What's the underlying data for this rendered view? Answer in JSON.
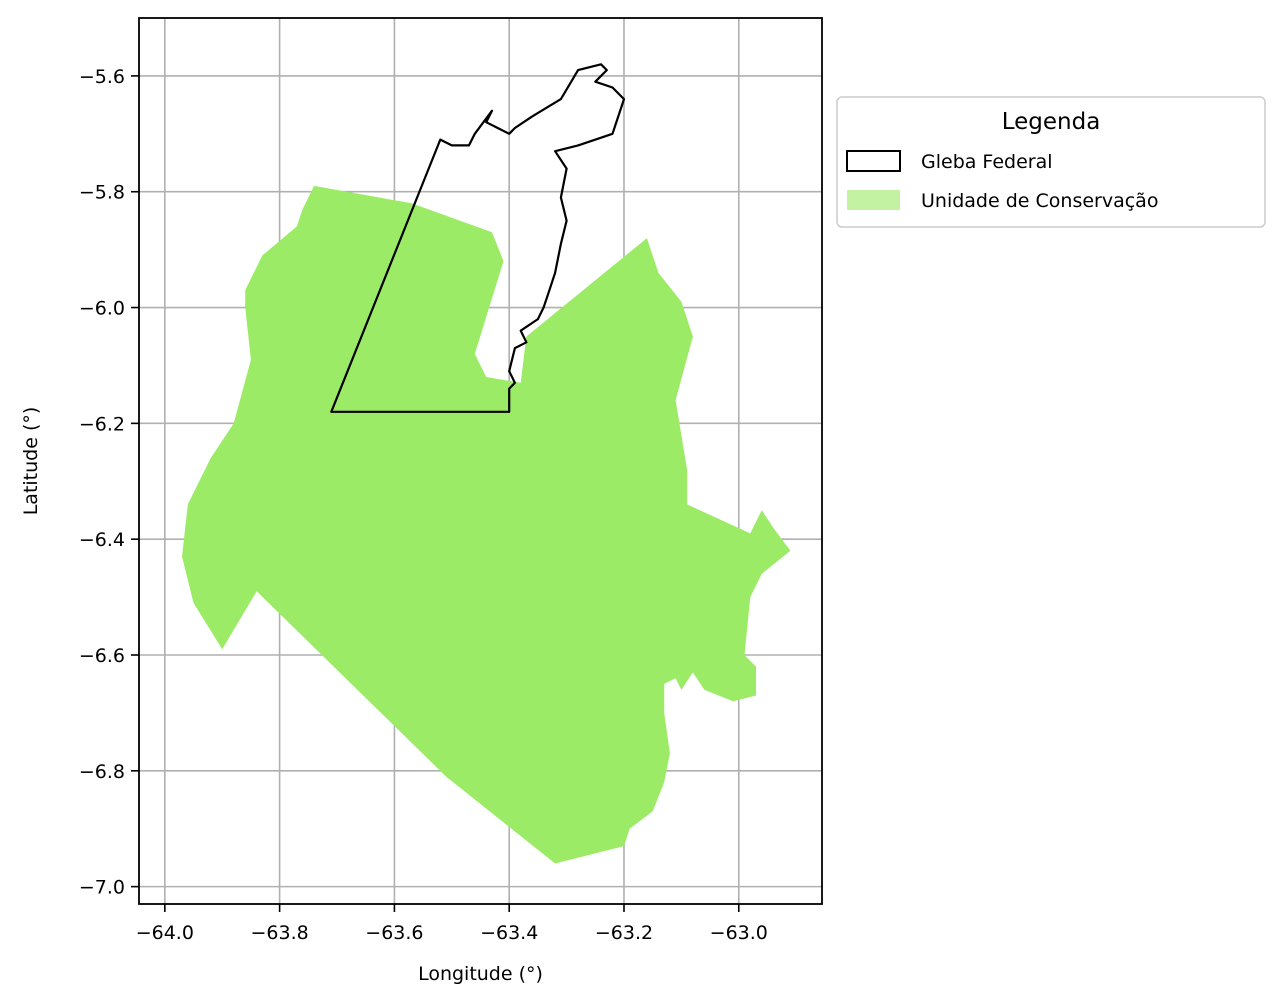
{
  "chart_data": {
    "type": "map",
    "xlabel": "Longitude (°)",
    "ylabel": "Latitude (°)",
    "xlim": [
      -64.045,
      -62.855
    ],
    "ylim": [
      -7.03,
      -5.5
    ],
    "xticks": [
      -64.0,
      -63.8,
      -63.6,
      -63.4,
      -63.2,
      -63.0
    ],
    "xtick_labels": [
      "−64.0",
      "−63.8",
      "−63.6",
      "−63.4",
      "−63.2",
      "−63.0"
    ],
    "yticks": [
      -5.6,
      -5.8,
      -6.0,
      -6.2,
      -6.4,
      -6.6,
      -6.8,
      -7.0
    ],
    "ytick_labels": [
      "−5.6",
      "−5.8",
      "−6.0",
      "−6.2",
      "−6.4",
      "−6.6",
      "−6.8",
      "−7.0"
    ],
    "grid": true,
    "legend": {
      "title": "Legenda",
      "placement": "outside upper right",
      "entries": [
        {
          "label": "Gleba Federal",
          "style": "outline",
          "color": "#000000"
        },
        {
          "label": "Unidade de Conservação",
          "style": "fill",
          "color": "#9ceb66"
        }
      ]
    },
    "layers": [
      {
        "name": "Unidade de Conservação",
        "style": "fill",
        "color": "#9ceb66",
        "coordinates": [
          [
            -63.74,
            -5.79
          ],
          [
            -63.57,
            -5.82
          ],
          [
            -63.43,
            -5.87
          ],
          [
            -63.41,
            -5.92
          ],
          [
            -63.46,
            -6.08
          ],
          [
            -63.44,
            -6.12
          ],
          [
            -63.38,
            -6.13
          ],
          [
            -63.37,
            -6.05
          ],
          [
            -63.16,
            -5.88
          ],
          [
            -63.14,
            -5.94
          ],
          [
            -63.1,
            -5.99
          ],
          [
            -63.08,
            -6.05
          ],
          [
            -63.11,
            -6.16
          ],
          [
            -63.09,
            -6.28
          ],
          [
            -63.09,
            -6.34
          ],
          [
            -62.98,
            -6.39
          ],
          [
            -62.96,
            -6.35
          ],
          [
            -62.94,
            -6.38
          ],
          [
            -62.91,
            -6.42
          ],
          [
            -62.96,
            -6.46
          ],
          [
            -62.98,
            -6.5
          ],
          [
            -62.99,
            -6.6
          ],
          [
            -62.97,
            -6.62
          ],
          [
            -62.97,
            -6.67
          ],
          [
            -63.01,
            -6.68
          ],
          [
            -63.06,
            -6.66
          ],
          [
            -63.08,
            -6.63
          ],
          [
            -63.1,
            -6.66
          ],
          [
            -63.11,
            -6.64
          ],
          [
            -63.13,
            -6.65
          ],
          [
            -63.13,
            -6.7
          ],
          [
            -63.12,
            -6.77
          ],
          [
            -63.13,
            -6.82
          ],
          [
            -63.15,
            -6.87
          ],
          [
            -63.19,
            -6.9
          ],
          [
            -63.2,
            -6.93
          ],
          [
            -63.32,
            -6.96
          ],
          [
            -63.51,
            -6.81
          ],
          [
            -63.84,
            -6.49
          ],
          [
            -63.9,
            -6.59
          ],
          [
            -63.95,
            -6.51
          ],
          [
            -63.97,
            -6.43
          ],
          [
            -63.96,
            -6.34
          ],
          [
            -63.92,
            -6.26
          ],
          [
            -63.88,
            -6.2
          ],
          [
            -63.85,
            -6.09
          ],
          [
            -63.86,
            -6.0
          ],
          [
            -63.86,
            -5.97
          ],
          [
            -63.83,
            -5.91
          ],
          [
            -63.77,
            -5.86
          ],
          [
            -63.76,
            -5.83
          ]
        ]
      },
      {
        "name": "Gleba Federal",
        "style": "outline",
        "color": "#000000",
        "coordinates": [
          [
            -63.71,
            -6.18
          ],
          [
            -63.4,
            -6.18
          ],
          [
            -63.4,
            -6.14
          ],
          [
            -63.39,
            -6.13
          ],
          [
            -63.4,
            -6.11
          ],
          [
            -63.39,
            -6.07
          ],
          [
            -63.37,
            -6.06
          ],
          [
            -63.38,
            -6.04
          ],
          [
            -63.35,
            -6.02
          ],
          [
            -63.34,
            -6.0
          ],
          [
            -63.33,
            -5.97
          ],
          [
            -63.32,
            -5.94
          ],
          [
            -63.31,
            -5.89
          ],
          [
            -63.3,
            -5.85
          ],
          [
            -63.31,
            -5.81
          ],
          [
            -63.3,
            -5.76
          ],
          [
            -63.32,
            -5.73
          ],
          [
            -63.28,
            -5.72
          ],
          [
            -63.22,
            -5.7
          ],
          [
            -63.2,
            -5.64
          ],
          [
            -63.22,
            -5.62
          ],
          [
            -63.25,
            -5.61
          ],
          [
            -63.23,
            -5.59
          ],
          [
            -63.24,
            -5.58
          ],
          [
            -63.28,
            -5.59
          ],
          [
            -63.31,
            -5.64
          ],
          [
            -63.36,
            -5.67
          ],
          [
            -63.39,
            -5.69
          ],
          [
            -63.4,
            -5.7
          ],
          [
            -63.42,
            -5.69
          ],
          [
            -63.44,
            -5.68
          ],
          [
            -63.43,
            -5.66
          ],
          [
            -63.46,
            -5.7
          ],
          [
            -63.47,
            -5.72
          ],
          [
            -63.5,
            -5.72
          ],
          [
            -63.52,
            -5.71
          ]
        ]
      }
    ]
  }
}
